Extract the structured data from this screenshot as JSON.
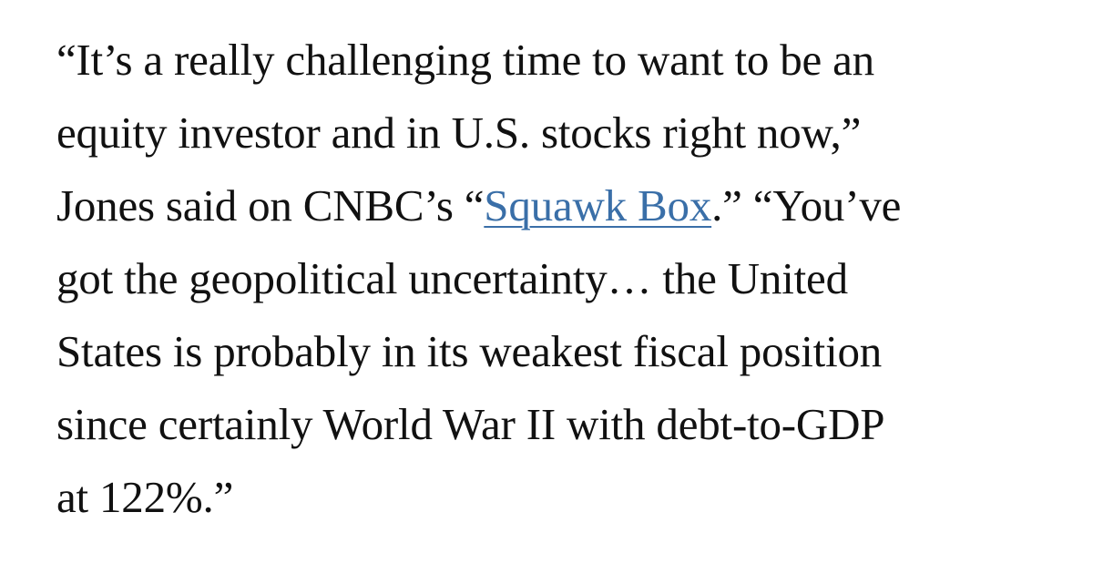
{
  "article": {
    "lines": [
      "“It’s a really challenging time to want to be an",
      "equity investor and in U.S. stocks right now,”",
      {
        "before": "Jones said on CNBC’s “",
        "link": "Squawk Box",
        "after": ".” “You’ve"
      },
      "got the geopolitical uncertainty… the United",
      "States is probably in its weakest fiscal position",
      "since certainly World War II with debt-to-GDP",
      "at 122%.”"
    ],
    "link_color": "#3a6fa8",
    "text_color": "#111111"
  }
}
